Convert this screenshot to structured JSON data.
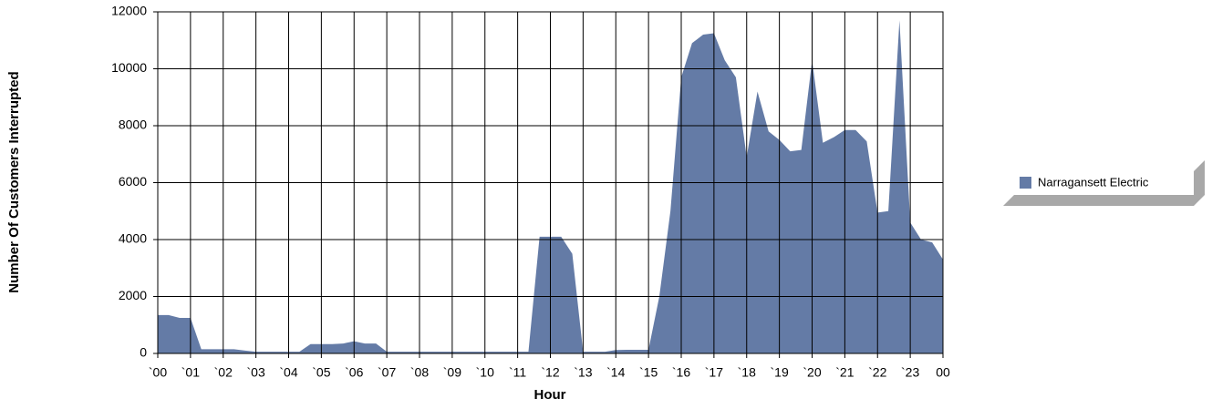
{
  "chart_data": {
    "type": "area",
    "x_label": "Hour",
    "y_label": "Number Of Customers Interrupted",
    "x": [
      0,
      0.33,
      0.67,
      1,
      1.33,
      1.67,
      2,
      2.33,
      2.67,
      3,
      3.33,
      3.67,
      4,
      4.33,
      4.67,
      5,
      5.33,
      5.67,
      6,
      6.33,
      6.67,
      7,
      7.33,
      7.67,
      8,
      8.33,
      8.67,
      9,
      9.33,
      9.67,
      10,
      10.33,
      10.67,
      11,
      11.33,
      11.67,
      12,
      12.33,
      12.67,
      13,
      13.33,
      13.67,
      14,
      14.33,
      14.67,
      15,
      15.33,
      15.67,
      16,
      16.33,
      16.67,
      17,
      17.33,
      17.67,
      18,
      18.33,
      18.67,
      19,
      19.33,
      19.67,
      20,
      20.33,
      20.67,
      21,
      21.33,
      21.67,
      22,
      22.33,
      22.67,
      23,
      23.33,
      23.67,
      24
    ],
    "series": [
      {
        "name": "Narragansett Electric",
        "color": "#647ba6",
        "values": [
          1350,
          1350,
          1250,
          1250,
          150,
          150,
          150,
          150,
          100,
          60,
          60,
          60,
          60,
          60,
          330,
          330,
          330,
          350,
          430,
          350,
          350,
          60,
          60,
          60,
          60,
          60,
          60,
          60,
          60,
          60,
          60,
          60,
          60,
          60,
          60,
          4100,
          4100,
          4100,
          3500,
          60,
          60,
          60,
          120,
          130,
          130,
          130,
          2000,
          5000,
          9700,
          10900,
          11200,
          11250,
          10300,
          9700,
          6900,
          9200,
          7800,
          7500,
          7100,
          7150,
          10300,
          7400,
          7600,
          7850,
          7850,
          7450,
          4950,
          5000,
          11700,
          4600,
          4000,
          3900,
          3300
        ]
      }
    ],
    "xlim": [
      0,
      24
    ],
    "xticks": [
      {
        "value": 0,
        "label": "`00"
      },
      {
        "value": 1,
        "label": "`01"
      },
      {
        "value": 2,
        "label": "`02"
      },
      {
        "value": 3,
        "label": "`03"
      },
      {
        "value": 4,
        "label": "`04"
      },
      {
        "value": 5,
        "label": "`05"
      },
      {
        "value": 6,
        "label": "`06"
      },
      {
        "value": 7,
        "label": "`07"
      },
      {
        "value": 8,
        "label": "`08"
      },
      {
        "value": 9,
        "label": "`09"
      },
      {
        "value": 10,
        "label": "`10"
      },
      {
        "value": 11,
        "label": "`11"
      },
      {
        "value": 12,
        "label": "`12"
      },
      {
        "value": 13,
        "label": "`13"
      },
      {
        "value": 14,
        "label": "`14"
      },
      {
        "value": 15,
        "label": "`15"
      },
      {
        "value": 16,
        "label": "`16"
      },
      {
        "value": 17,
        "label": "`17"
      },
      {
        "value": 18,
        "label": "`18"
      },
      {
        "value": 19,
        "label": "`19"
      },
      {
        "value": 20,
        "label": "`20"
      },
      {
        "value": 21,
        "label": "`21"
      },
      {
        "value": 22,
        "label": "`22"
      },
      {
        "value": 23,
        "label": "`23"
      },
      {
        "value": 24,
        "label": "00"
      }
    ],
    "ylim": [
      0,
      12000
    ],
    "yticks": [
      0,
      2000,
      4000,
      6000,
      8000,
      10000,
      12000
    ],
    "grid": true,
    "legend": "right"
  }
}
